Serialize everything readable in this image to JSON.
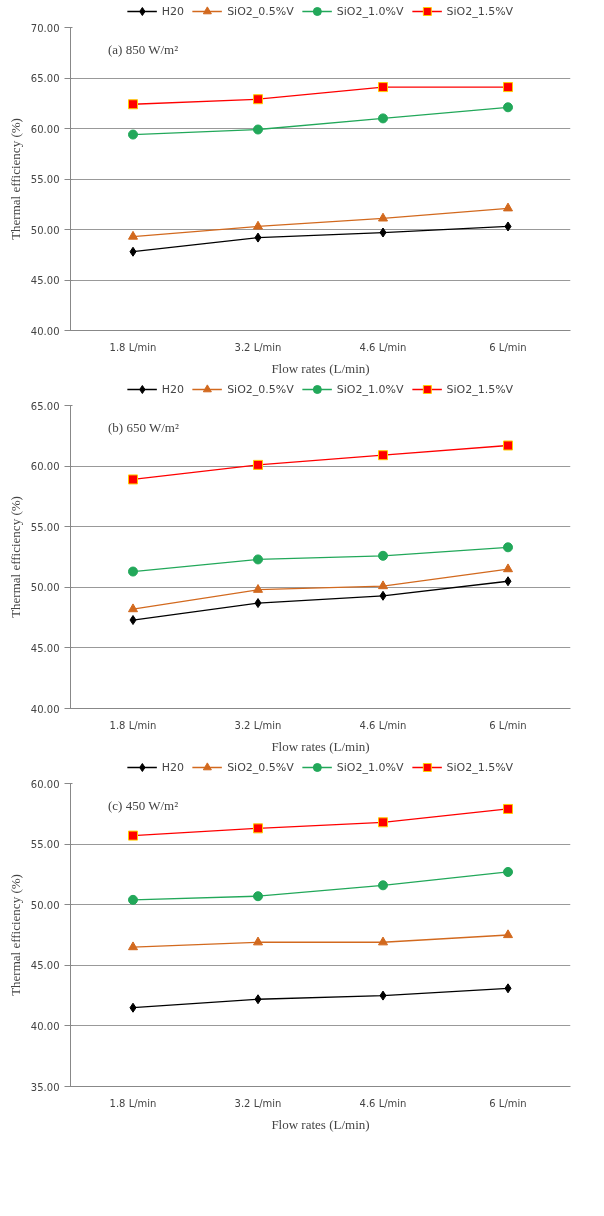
{
  "chart_data": [
    {
      "type": "line",
      "annotations": [
        "(a) 850 W/m²"
      ],
      "xlabel": "Flow rates (L/min)",
      "ylabel": "Thermal efficiency (%)",
      "categories": [
        "1.8 L/min",
        "3.2 L/min",
        "4.6 L/min",
        "6 L/min"
      ],
      "ylim": [
        40,
        70
      ],
      "yticks": [
        {
          "value": 40,
          "label": "40.00"
        },
        {
          "value": 45,
          "label": "45.00"
        },
        {
          "value": 50,
          "label": "50.00"
        },
        {
          "value": 55,
          "label": "55.00"
        },
        {
          "value": 60,
          "label": "60.00"
        },
        {
          "value": 65,
          "label": "65.00"
        },
        {
          "value": 70,
          "label": "70.00"
        }
      ],
      "grid": "y",
      "legend": "top",
      "series": [
        {
          "name": "H20",
          "color": "#000000",
          "marker": "diamond",
          "values": [
            47.8,
            49.2,
            49.7,
            50.3
          ]
        },
        {
          "name": "SiO2_0.5%V",
          "color": "#d2691e",
          "marker": "triangle",
          "values": [
            49.3,
            50.3,
            51.1,
            52.1
          ]
        },
        {
          "name": "SiO2_1.0%V",
          "color": "#22a85a",
          "marker": "circle",
          "values": [
            59.4,
            59.9,
            61.0,
            62.1
          ]
        },
        {
          "name": "SiO2_1.5%V",
          "color": "#ff0000",
          "marker": "square",
          "values": [
            62.4,
            62.9,
            64.1,
            64.1
          ]
        }
      ]
    },
    {
      "type": "line",
      "annotations": [
        "(b) 650 W/m²"
      ],
      "xlabel": "Flow rates (L/min)",
      "ylabel": "Thermal efficiency (%)",
      "categories": [
        "1.8 L/min",
        "3.2 L/min",
        "4.6 L/min",
        "6 L/min"
      ],
      "ylim": [
        40,
        65
      ],
      "yticks": [
        {
          "value": 40,
          "label": "40.00"
        },
        {
          "value": 45,
          "label": "45.00"
        },
        {
          "value": 50,
          "label": "50.00"
        },
        {
          "value": 55,
          "label": "55.00"
        },
        {
          "value": 60,
          "label": "60.00"
        },
        {
          "value": 65,
          "label": "65.00"
        }
      ],
      "grid": "y",
      "legend": "top",
      "series": [
        {
          "name": "H20",
          "color": "#000000",
          "marker": "diamond",
          "values": [
            47.3,
            48.7,
            49.3,
            50.5
          ]
        },
        {
          "name": "SiO2_0.5%V",
          "color": "#d2691e",
          "marker": "triangle",
          "values": [
            48.2,
            49.8,
            50.1,
            51.5
          ]
        },
        {
          "name": "SiO2_1.0%V",
          "color": "#22a85a",
          "marker": "circle",
          "values": [
            51.3,
            52.3,
            52.6,
            53.3
          ]
        },
        {
          "name": "SiO2_1.5%V",
          "color": "#ff0000",
          "marker": "square",
          "values": [
            58.9,
            60.1,
            60.9,
            61.7
          ]
        }
      ]
    },
    {
      "type": "line",
      "annotations": [
        "(c) 450 W/m²"
      ],
      "xlabel": "Flow rates (L/min)",
      "ylabel": "Thermal efficiency (%)",
      "categories": [
        "1.8 L/min",
        "3.2 L/min",
        "4.6 L/min",
        "6 L/min"
      ],
      "ylim": [
        35,
        60
      ],
      "yticks": [
        {
          "value": 35,
          "label": "35.00"
        },
        {
          "value": 40,
          "label": "40.00"
        },
        {
          "value": 45,
          "label": "45.00"
        },
        {
          "value": 50,
          "label": "50.00"
        },
        {
          "value": 55,
          "label": "55.00"
        },
        {
          "value": 60,
          "label": "60.00"
        }
      ],
      "grid": "y",
      "legend": "top",
      "series": [
        {
          "name": "H20",
          "color": "#000000",
          "marker": "diamond",
          "values": [
            41.5,
            42.2,
            42.5,
            43.1
          ]
        },
        {
          "name": "SiO2_0.5%V",
          "color": "#d2691e",
          "marker": "triangle",
          "values": [
            46.5,
            46.9,
            46.9,
            47.5
          ]
        },
        {
          "name": "SiO2_1.0%V",
          "color": "#22a85a",
          "marker": "circle",
          "values": [
            50.4,
            50.7,
            51.6,
            52.7
          ]
        },
        {
          "name": "SiO2_1.5%V",
          "color": "#ff0000",
          "marker": "square",
          "values": [
            55.7,
            56.3,
            56.8,
            57.9
          ]
        }
      ]
    }
  ]
}
